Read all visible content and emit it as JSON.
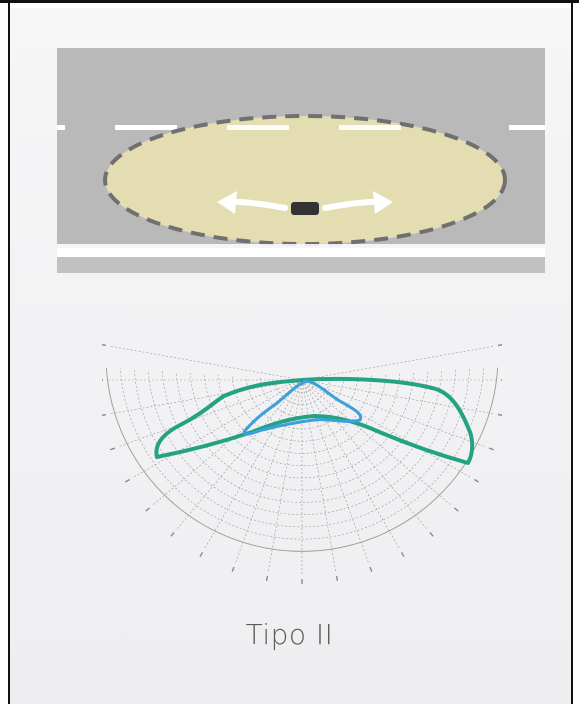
{
  "caption": "Tipo II",
  "road": {
    "asphalt_color": "#b9b9b9",
    "light_pool_color": "#e4ddb1",
    "lane_line_color": "#ffffff",
    "pool_border_color": "#707070",
    "arrows_color": "#ffffff",
    "luminaire_color": "#333333"
  },
  "polar": {
    "grid_color": "#9a9a9a",
    "series": [
      {
        "color": "#24a383"
      },
      {
        "color": "#3ba0db"
      }
    ]
  }
}
